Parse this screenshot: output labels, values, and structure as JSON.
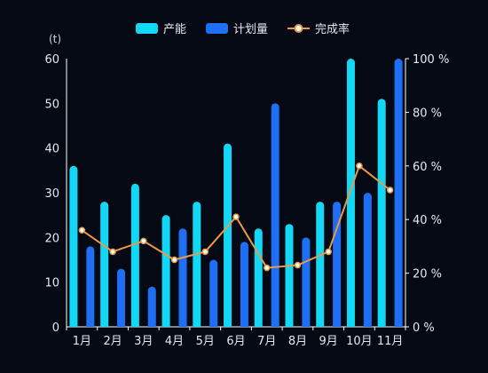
{
  "chart_data": {
    "type": "bar",
    "categories": [
      "1月",
      "2月",
      "3月",
      "4月",
      "5月",
      "6月",
      "7月",
      "8月",
      "9月",
      "10月",
      "11月"
    ],
    "series": [
      {
        "name": "产能",
        "type": "bar",
        "axis": "left",
        "color": "#12d8f5",
        "values": [
          36,
          28,
          32,
          25,
          28,
          41,
          22,
          23,
          28,
          60,
          51
        ]
      },
      {
        "name": "计划量",
        "type": "bar",
        "axis": "left",
        "color": "#1f6ff5",
        "values": [
          18,
          13,
          9,
          22,
          15,
          19,
          50,
          20,
          28,
          30,
          60
        ]
      },
      {
        "name": "完成率",
        "type": "line",
        "axis": "right",
        "color": "#e8994a",
        "values": [
          36,
          28,
          32,
          25,
          28,
          41,
          22,
          23,
          28,
          60,
          51
        ]
      }
    ],
    "y_left": {
      "unit_label": "(t)",
      "ylim": [
        0,
        60
      ],
      "ticks": [
        "0",
        "10",
        "20",
        "30",
        "40",
        "50",
        "60"
      ]
    },
    "y_right": {
      "ylim": [
        0,
        100
      ],
      "ticks": [
        "0 %",
        "20 %",
        "40 %",
        "60 %",
        "80 %",
        "100 %"
      ]
    },
    "grid": false,
    "legend_position": "top-center",
    "background": "#040914",
    "axis_color": "#ffffff"
  }
}
